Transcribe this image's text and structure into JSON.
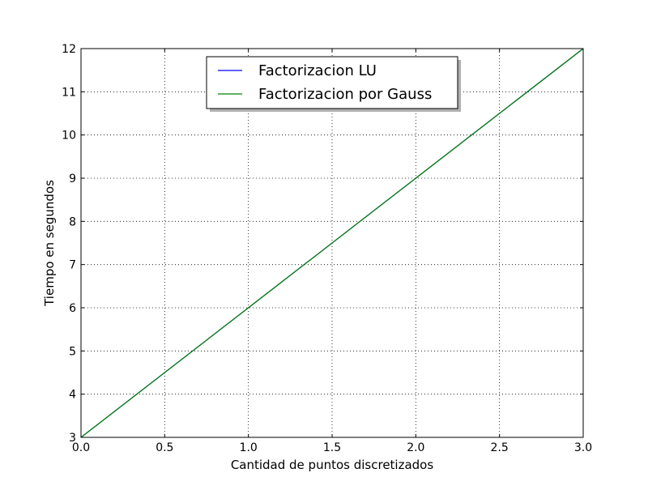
{
  "chart_data": {
    "type": "line",
    "title": "",
    "xlabel": "Cantidad de puntos discretizados",
    "ylabel": "Tiempo en segundos",
    "xlim": [
      0.0,
      3.0
    ],
    "ylim": [
      3,
      12
    ],
    "xticks": [
      "0.0",
      "0.5",
      "1.0",
      "1.5",
      "2.0",
      "2.5",
      "3.0"
    ],
    "yticks": [
      "3",
      "4",
      "5",
      "6",
      "7",
      "8",
      "9",
      "10",
      "11",
      "12"
    ],
    "grid": true,
    "legend_position": "top-center",
    "series": [
      {
        "name": "Factorizacion LU",
        "color": "#0000ff",
        "x": [
          0,
          1,
          2,
          3
        ],
        "y": [
          3,
          6,
          9,
          12
        ]
      },
      {
        "name": "Factorizacion por Gauss",
        "color": "#008000",
        "x": [
          0,
          1,
          2,
          3
        ],
        "y": [
          3,
          6,
          9,
          12
        ]
      }
    ]
  }
}
